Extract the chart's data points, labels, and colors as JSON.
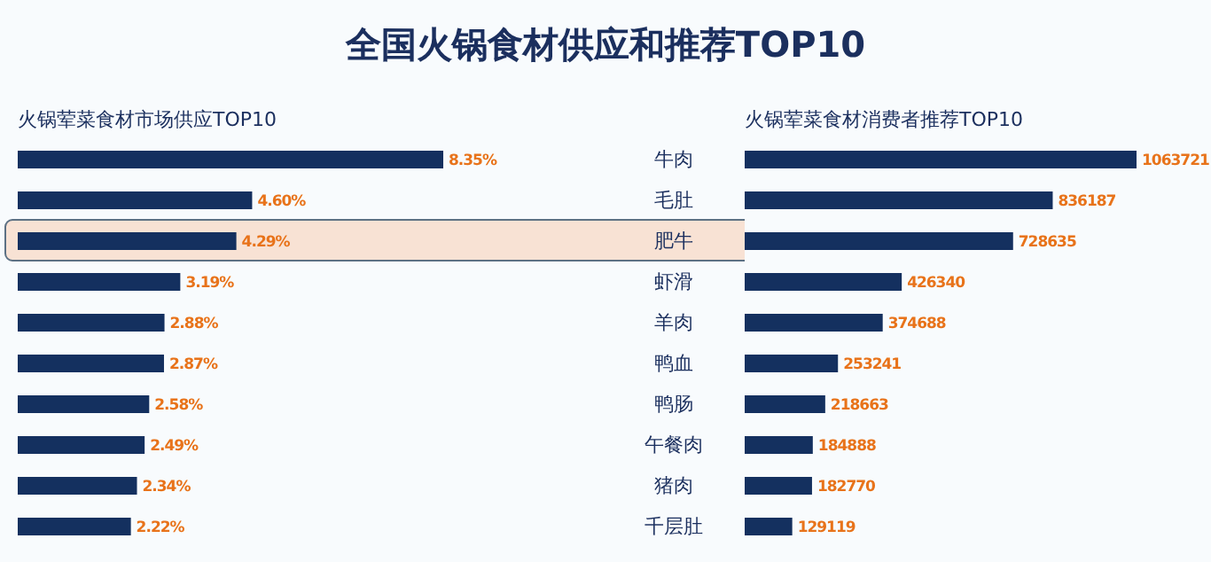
{
  "chart_data": [
    {
      "type": "bar",
      "orientation": "horizontal",
      "title": "全国火锅食材供应和推荐TOP10",
      "subtitle": "火锅荤菜食材市场供应TOP10",
      "tick_labels": "y",
      "grid": false,
      "categories": [
        "牛肉",
        "毛肚",
        "肥牛",
        "虾滑",
        "羊肉",
        "鸭血",
        "鸭肠",
        "午餐肉",
        "猪肉",
        "千层肚"
      ],
      "values": [
        8.35,
        4.6,
        4.29,
        3.19,
        2.88,
        2.87,
        2.58,
        2.49,
        2.34,
        2.22
      ],
      "value_labels": [
        "8.35%",
        "4.60%",
        "4.29%",
        "3.19%",
        "2.88%",
        "2.87%",
        "2.58%",
        "2.49%",
        "2.34%",
        "2.22%"
      ],
      "color": "#14305f",
      "bands": [
        {
          "axis": "y",
          "from": "肥牛",
          "to": "肥牛",
          "color": "#f8e2d4"
        }
      ]
    },
    {
      "type": "bar",
      "orientation": "horizontal",
      "subtitle": "火锅荤菜食材消费者推荐TOP10",
      "tick_labels": false,
      "grid": false,
      "categories": [
        null,
        null,
        null,
        null,
        null,
        null,
        null,
        null,
        null,
        null
      ],
      "values": [
        1063721,
        836187,
        728635,
        426340,
        374688,
        253241,
        218663,
        184888,
        182770,
        129119
      ],
      "data_labels": true,
      "color": "#14305f"
    }
  ]
}
